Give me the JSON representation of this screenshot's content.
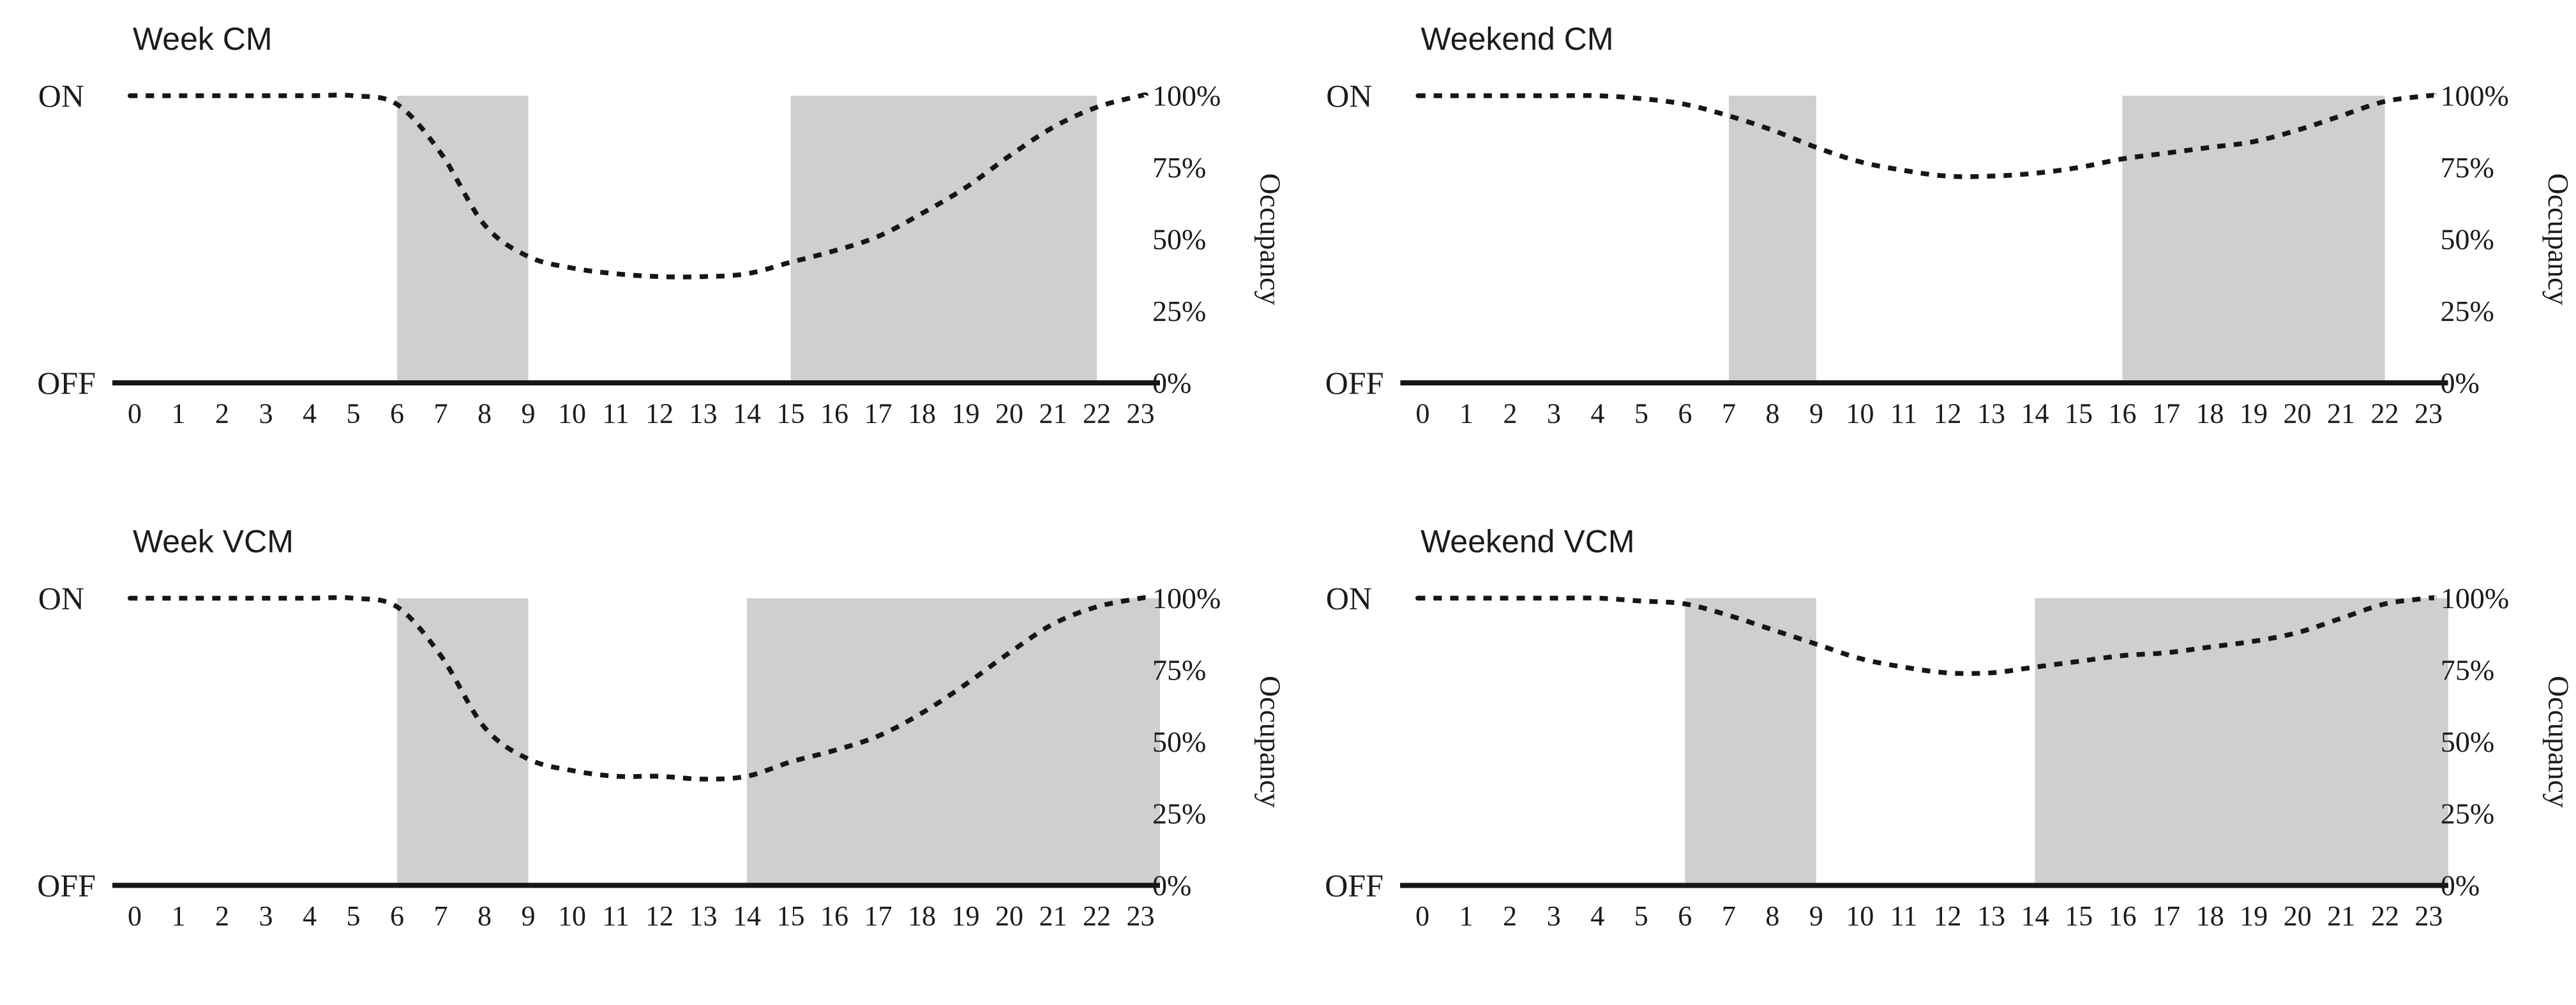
{
  "figure": {
    "background": "#ffffff",
    "colors": {
      "band": "#cfcfcf",
      "curve": "#161616",
      "axis": "#161616",
      "text": "#1b1b1b",
      "title": "#1b1b1b"
    },
    "y_axis": {
      "on_label": "ON",
      "off_label": "OFF",
      "right_axis_title": "Occupancy",
      "right_ticks": [
        {
          "label": "100%",
          "value": 100
        },
        {
          "label": "75%",
          "value": 75
        },
        {
          "label": "50%",
          "value": 50
        },
        {
          "label": "25%",
          "value": 25
        },
        {
          "label": "0%",
          "value": 0
        }
      ]
    },
    "x_ticks": [
      "0",
      "1",
      "2",
      "3",
      "4",
      "5",
      "6",
      "7",
      "8",
      "9",
      "10",
      "11",
      "12",
      "13",
      "14",
      "15",
      "16",
      "17",
      "18",
      "19",
      "20",
      "21",
      "22",
      "23"
    ]
  },
  "chart_data": [
    {
      "id": "week-cm",
      "type": "line",
      "title": "Week CM",
      "line_style": "dotted",
      "ylabel": "Occupancy",
      "ylim": [
        0,
        100
      ],
      "x": [
        0,
        1,
        2,
        3,
        4,
        5,
        6,
        7,
        8,
        9,
        10,
        11,
        12,
        13,
        14,
        15,
        16,
        17,
        18,
        19,
        20,
        21,
        22,
        23
      ],
      "occupancy_pct": [
        100,
        100,
        100,
        100,
        100,
        100,
        97,
        80,
        55,
        44,
        40,
        38,
        37,
        37,
        38,
        42,
        46,
        51,
        59,
        68,
        79,
        89,
        96,
        100
      ],
      "shaded_on_bands": [
        {
          "from": 6,
          "to": 9
        },
        {
          "from": 15,
          "to": 22
        }
      ]
    },
    {
      "id": "weekend-cm",
      "type": "line",
      "title": "Weekend CM",
      "line_style": "dotted",
      "ylabel": "Occupancy",
      "ylim": [
        0,
        100
      ],
      "x": [
        0,
        1,
        2,
        3,
        4,
        5,
        6,
        7,
        8,
        9,
        10,
        11,
        12,
        13,
        14,
        15,
        16,
        17,
        18,
        19,
        20,
        21,
        22,
        23
      ],
      "occupancy_pct": [
        100,
        100,
        100,
        100,
        100,
        99,
        97,
        93,
        88,
        82,
        77,
        74,
        72,
        72,
        73,
        75,
        78,
        80,
        82,
        84,
        88,
        93,
        98,
        100
      ],
      "shaded_on_bands": [
        {
          "from": 7,
          "to": 9
        },
        {
          "from": 16,
          "to": 22
        }
      ]
    },
    {
      "id": "week-vcm",
      "type": "line",
      "title": "Week VCM",
      "line_style": "dotted",
      "ylabel": "Occupancy",
      "ylim": [
        0,
        100
      ],
      "x": [
        0,
        1,
        2,
        3,
        4,
        5,
        6,
        7,
        8,
        9,
        10,
        11,
        12,
        13,
        14,
        15,
        16,
        17,
        18,
        19,
        20,
        21,
        22,
        23
      ],
      "occupancy_pct": [
        100,
        100,
        100,
        100,
        100,
        100,
        97,
        80,
        55,
        44,
        40,
        38,
        38,
        37,
        38,
        43,
        47,
        52,
        60,
        70,
        81,
        91,
        97,
        100
      ],
      "shaded_on_bands": [
        {
          "from": 6,
          "to": 9
        },
        {
          "from": 14,
          "to": 24
        }
      ]
    },
    {
      "id": "weekend-vcm",
      "type": "line",
      "title": "Weekend VCM",
      "line_style": "dotted",
      "ylabel": "Occupancy",
      "ylim": [
        0,
        100
      ],
      "x": [
        0,
        1,
        2,
        3,
        4,
        5,
        6,
        7,
        8,
        9,
        10,
        11,
        12,
        13,
        14,
        15,
        16,
        17,
        18,
        19,
        20,
        21,
        22,
        23
      ],
      "occupancy_pct": [
        100,
        100,
        100,
        100,
        100,
        99,
        98,
        94,
        89,
        84,
        79,
        76,
        74,
        74,
        76,
        78,
        80,
        81,
        83,
        85,
        88,
        93,
        98,
        100
      ],
      "shaded_on_bands": [
        {
          "from": 6,
          "to": 9
        },
        {
          "from": 14,
          "to": 24
        }
      ]
    }
  ]
}
